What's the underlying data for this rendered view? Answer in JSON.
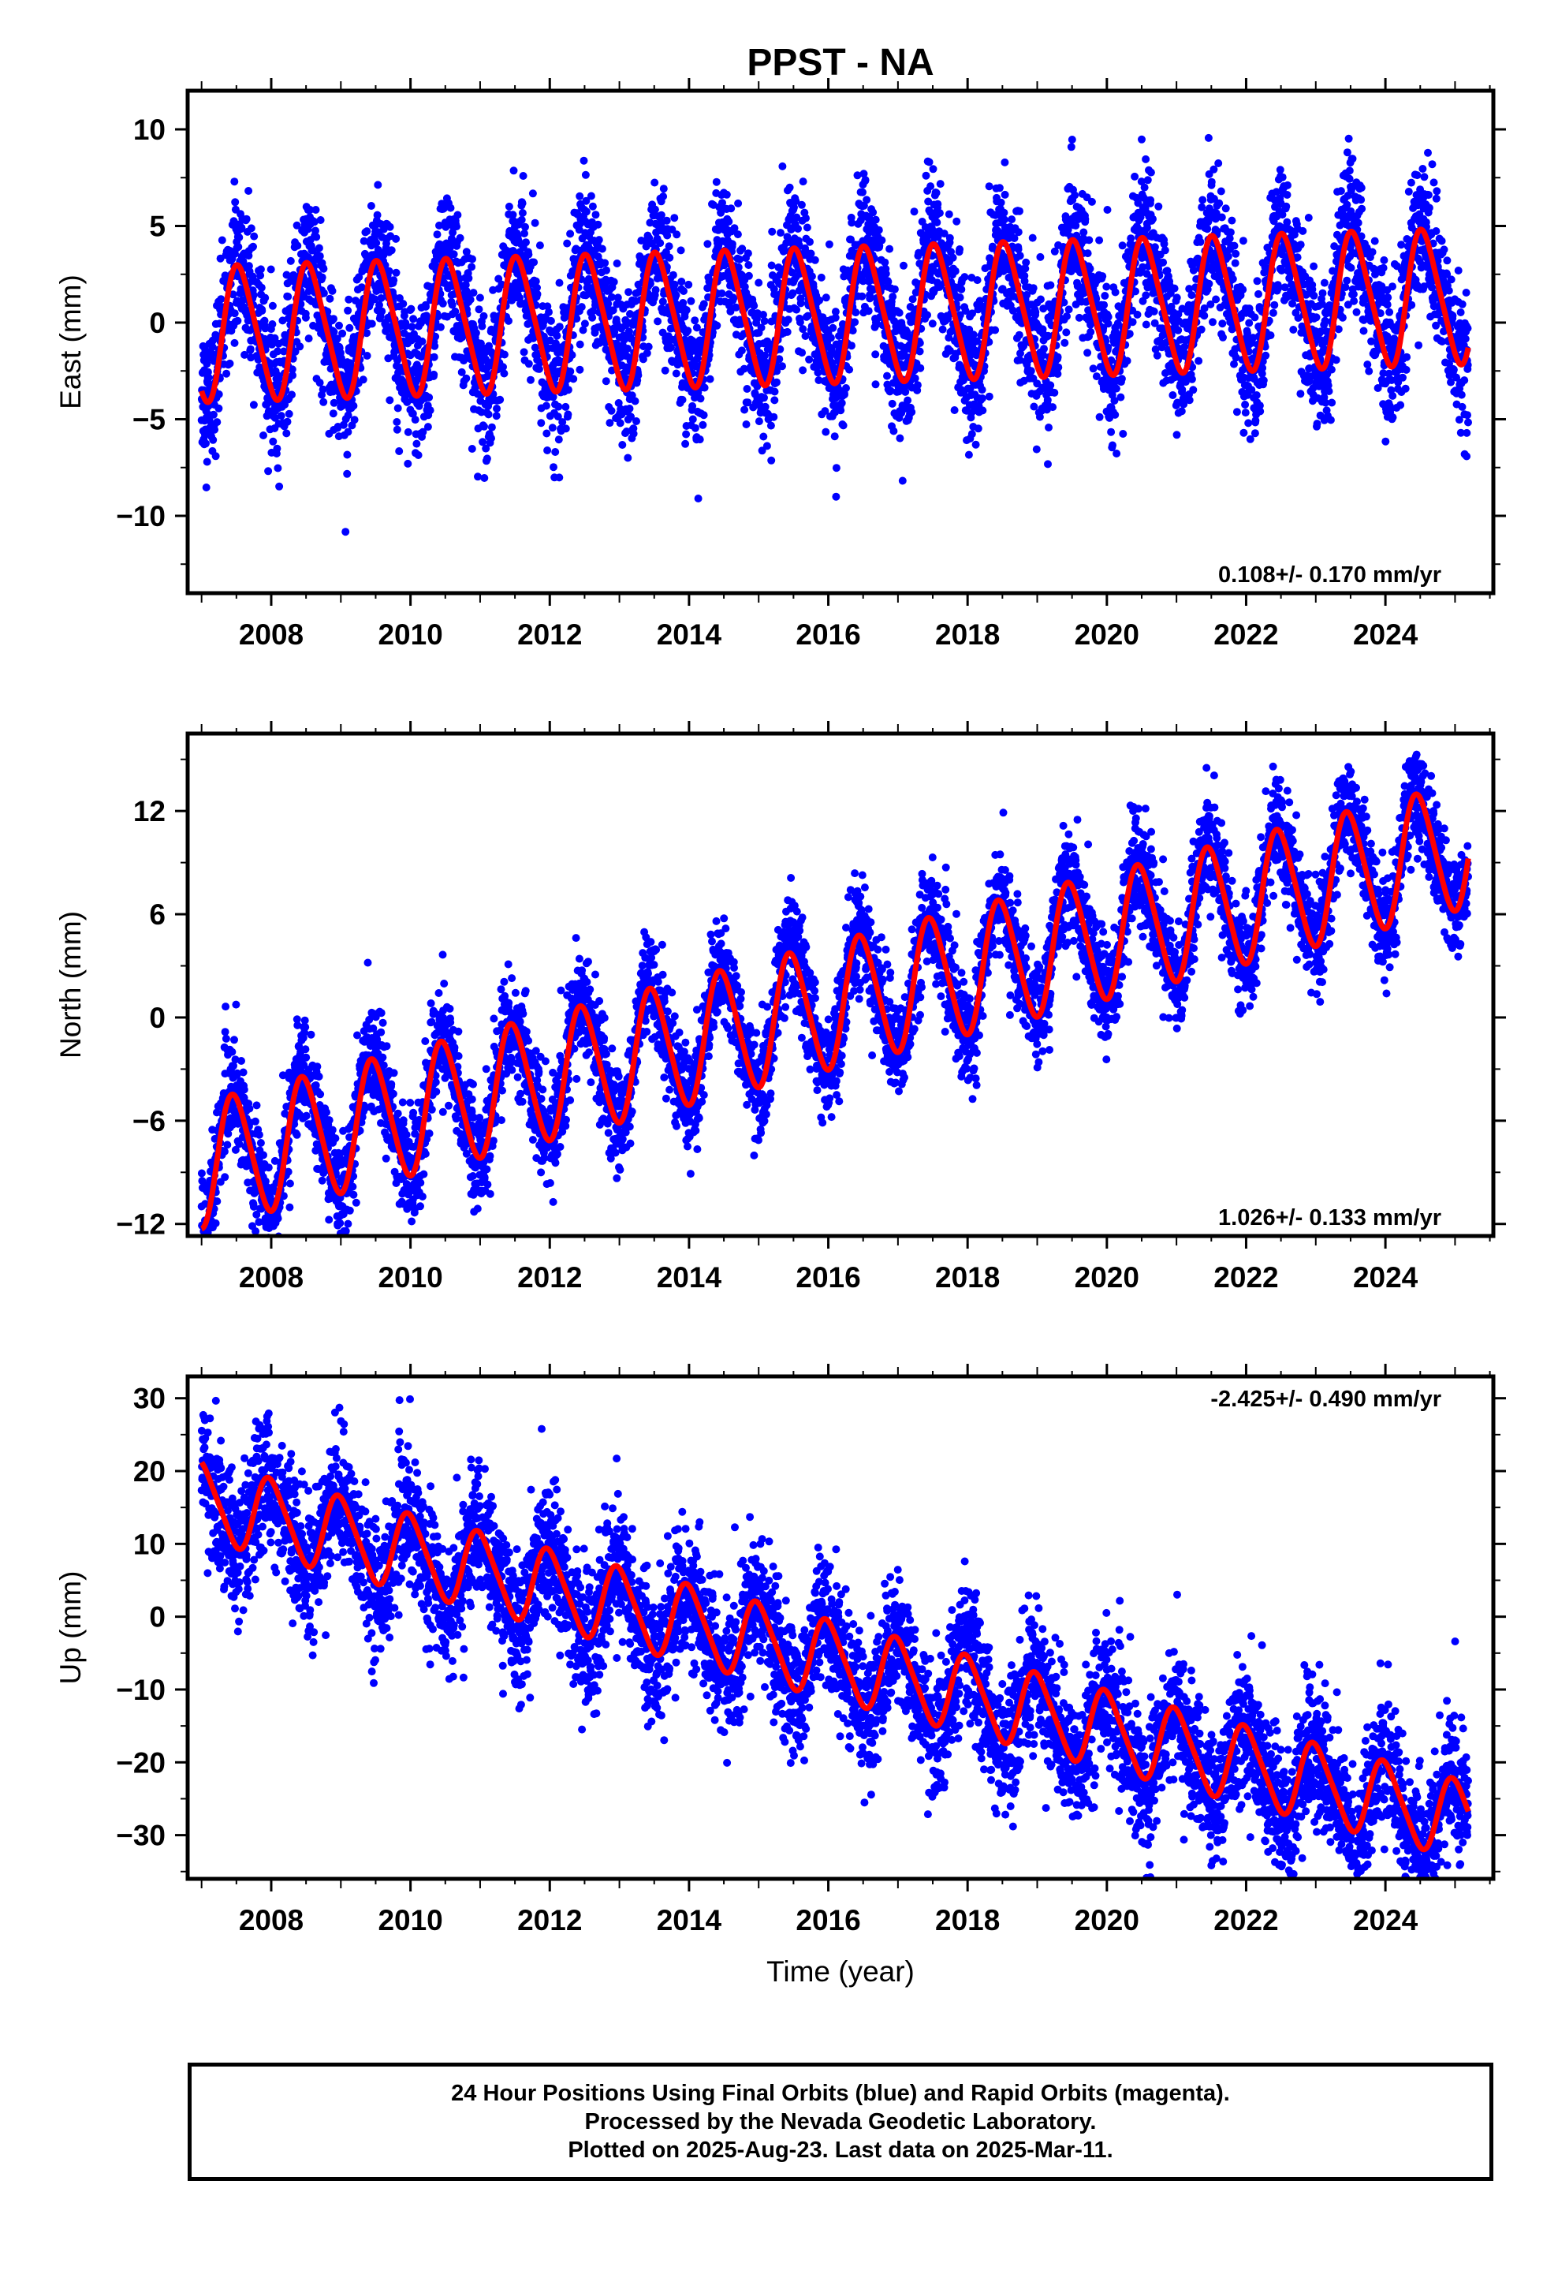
{
  "title": "PPST - NA",
  "chart_data": [
    {
      "type": "scatter",
      "ylabel": "East (mm)",
      "xlim": [
        2006.8,
        2025.55
      ],
      "ylim": [
        -14,
        12
      ],
      "yticks": [
        -10,
        -5,
        0,
        5,
        10
      ],
      "xticks": [
        2008,
        2010,
        2012,
        2014,
        2016,
        2018,
        2020,
        2022,
        2024
      ],
      "rate_label": "0.108+/- 0.170 mm/yr",
      "legend_placement": "bottom-right",
      "series": [
        {
          "name": "",
          "color": "#0000ff",
          "kind": "points",
          "model": {
            "t0": 2007.0,
            "t1": 2025.19,
            "offset": -0.4,
            "trend": 0.108,
            "annual_amp": 3.3,
            "annual_phase": 0.3,
            "semiannual_amp": 0.6,
            "noise": 1.8
          }
        },
        {
          "name": "",
          "color": "#ff0000",
          "kind": "line",
          "model": {
            "t0": 2007.0,
            "t1": 2025.19,
            "offset": -0.6,
            "trend": 0.108,
            "annual_amp": 3.4,
            "annual_phase": 0.3,
            "semiannual_amp": 0.5
          }
        }
      ]
    },
    {
      "type": "scatter",
      "ylabel": "North (mm)",
      "xlim": [
        2006.8,
        2025.55
      ],
      "ylim": [
        -12.7,
        16.5
      ],
      "yticks": [
        -12,
        -6,
        0,
        6,
        12
      ],
      "xticks": [
        2008,
        2010,
        2012,
        2014,
        2016,
        2018,
        2020,
        2022,
        2024
      ],
      "rate_label": "1.026+/- 0.133 mm/yr",
      "legend_placement": "bottom-right",
      "series": [
        {
          "name": "",
          "color": "#0000ff",
          "kind": "points",
          "model": {
            "t0": 2007.0,
            "t1": 2025.19,
            "offset": -8.5,
            "trend": 1.026,
            "annual_amp": 3.6,
            "annual_phase": 0.22,
            "semiannual_amp": 0.5,
            "noise": 1.5
          }
        },
        {
          "name": "",
          "color": "#ff0000",
          "kind": "line",
          "model": {
            "t0": 2007.0,
            "t1": 2025.19,
            "offset": -8.6,
            "trend": 1.026,
            "annual_amp": 3.6,
            "annual_phase": 0.22,
            "semiannual_amp": 0.4
          }
        }
      ]
    },
    {
      "type": "scatter",
      "ylabel": "Up (mm)",
      "xlabel": "Time (year)",
      "xlim": [
        2006.8,
        2025.55
      ],
      "ylim": [
        -36,
        33
      ],
      "yticks": [
        -30,
        -20,
        -10,
        0,
        10,
        20,
        30
      ],
      "xticks": [
        2008,
        2010,
        2012,
        2014,
        2016,
        2018,
        2020,
        2022,
        2024
      ],
      "rate_label": "-2.425+/- 0.490 mm/yr",
      "legend_placement": "top-right",
      "series": [
        {
          "name": "",
          "color": "#0000ff",
          "kind": "points",
          "model": {
            "t0": 2007.0,
            "t1": 2025.19,
            "offset": 15.5,
            "trend": -2.425,
            "annual_amp": 5.5,
            "annual_phase": 0.75,
            "semiannual_amp": 1.0,
            "noise": 4.5
          }
        },
        {
          "name": "",
          "color": "#ff0000",
          "kind": "line",
          "model": {
            "t0": 2007.0,
            "t1": 2025.19,
            "offset": 16.0,
            "trend": -2.425,
            "annual_amp": 5.2,
            "annual_phase": 0.75,
            "semiannual_amp": 0.8
          }
        }
      ]
    }
  ],
  "footer": {
    "line1": "24 Hour Positions Using Final Orbits (blue) and Rapid Orbits (magenta).",
    "line2": "Processed by the Nevada Geodetic Laboratory.",
    "line3": "Plotted on 2025-Aug-23. Last data on 2025-Mar-11."
  }
}
